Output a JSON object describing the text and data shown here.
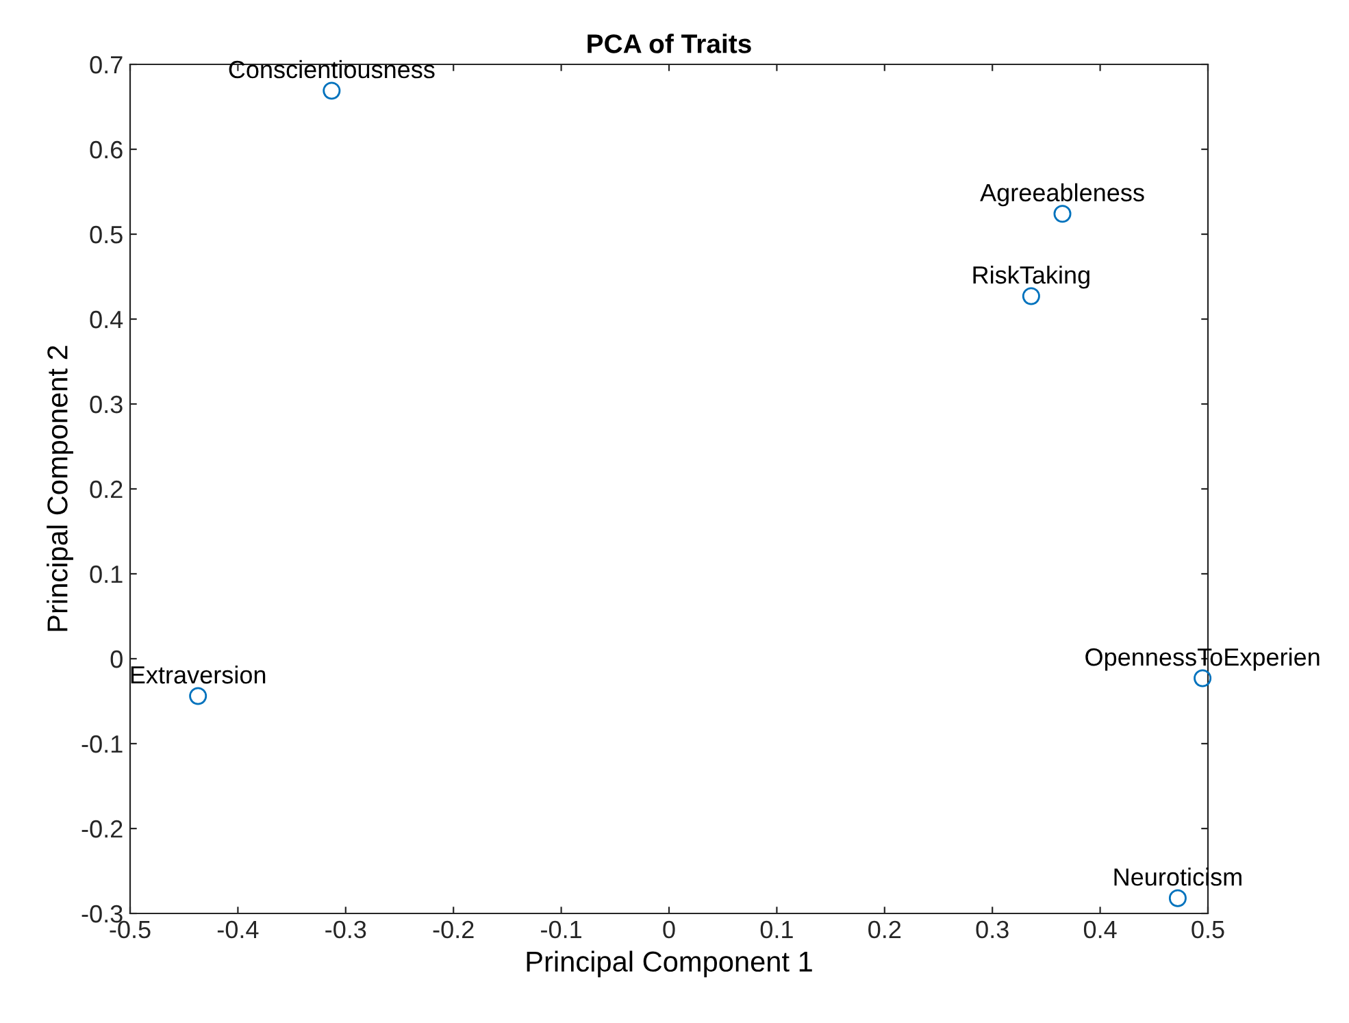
{
  "chart_data": {
    "type": "scatter",
    "title": "PCA of Traits",
    "xlabel": "Principal Component 1",
    "ylabel": "Principal Component 2",
    "x": [
      -0.313,
      0.365,
      0.336,
      0.495,
      -0.437,
      0.472
    ],
    "values": [
      0.669,
      0.524,
      0.427,
      -0.023,
      -0.044,
      -0.282
    ],
    "color": "#0072bd",
    "marker": "circle",
    "grid": false,
    "legend": false,
    "annotations": [
      {
        "text": "Conscientiousness",
        "x": -0.313,
        "y": 0.669
      },
      {
        "text": "Agreeableness",
        "x": 0.365,
        "y": 0.524
      },
      {
        "text": "RiskTaking",
        "x": 0.336,
        "y": 0.427
      },
      {
        "text": "OpennessToExperien",
        "x": 0.495,
        "y": -0.023
      },
      {
        "text": "Extraversion",
        "x": -0.437,
        "y": -0.044
      },
      {
        "text": "Neuroticism",
        "x": 0.472,
        "y": -0.282
      }
    ],
    "xlim": [
      -0.5,
      0.5
    ],
    "xticks": [
      -0.5,
      -0.4,
      -0.3,
      -0.2,
      -0.1,
      0,
      0.1,
      0.2,
      0.3,
      0.4,
      0.5
    ],
    "ylim": [
      -0.3,
      0.7
    ],
    "yticks": [
      -0.3,
      -0.2,
      -0.1,
      0,
      0.1,
      0.2,
      0.3,
      0.4,
      0.5,
      0.6,
      0.7
    ]
  }
}
